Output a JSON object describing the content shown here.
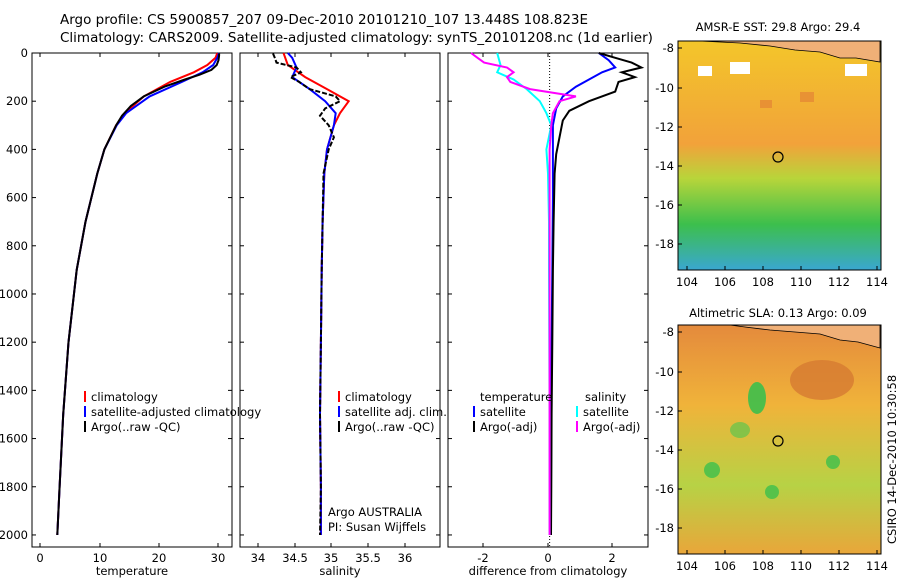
{
  "header": {
    "line1": "Argo profile: CS 5900857_207 09-Dec-2010 20101210_107 13.448S 108.823E",
    "line2": "Climatology: CARS2009. Satellite-adjusted climatology: synTS_20101208.nc (1d earlier)"
  },
  "colors": {
    "climatology": "#ff0000",
    "satellite": "#0000ff",
    "argo": "#000000",
    "sal_satellite": "#00ffff",
    "sal_argo": "#ff00ff"
  },
  "chart_data": [
    {
      "type": "line",
      "id": "temperature",
      "xlabel": "temperature",
      "ylabel": "",
      "xlim": [
        -2,
        32
      ],
      "ylim": [
        2050,
        0
      ],
      "xticks": [
        "0",
        "10",
        "20",
        "30"
      ],
      "yticks": [
        "0",
        "200",
        "400",
        "600",
        "800",
        "1000",
        "1200",
        "1400",
        "1600",
        "1800",
        "2000"
      ],
      "legend": [
        "climatology",
        "satellite-adjusted climatology",
        "Argo(..raw -QC)"
      ],
      "series": [
        {
          "name": "climatology",
          "depth": [
            0,
            20,
            50,
            80,
            120,
            180,
            250,
            300,
            400,
            500,
            700,
            900,
            1200,
            1500,
            1800,
            2000
          ],
          "values": [
            29.5,
            29.2,
            27.8,
            25.5,
            21.5,
            17.0,
            13.8,
            12.3,
            10.3,
            9.1,
            7.1,
            5.6,
            4.2,
            3.3,
            2.7,
            2.3
          ]
        },
        {
          "name": "satellite-adjusted climatology",
          "depth": [
            0,
            20,
            50,
            80,
            120,
            180,
            250,
            300,
            400,
            500,
            700,
            900,
            1200,
            1500,
            1800,
            2000
          ],
          "values": [
            29.8,
            29.5,
            28.8,
            27.0,
            23.5,
            18.0,
            14.0,
            12.4,
            10.3,
            9.1,
            7.1,
            5.6,
            4.2,
            3.3,
            2.7,
            2.3
          ]
        },
        {
          "name": "Argo(..raw -QC)",
          "depth": [
            2,
            10,
            30,
            50,
            70,
            90,
            110,
            140,
            180,
            220,
            260,
            300,
            400,
            500,
            700,
            900,
            1200,
            1500,
            1800,
            2000
          ],
          "values": [
            29.8,
            29.8,
            29.7,
            29.4,
            28.5,
            26.5,
            24.0,
            20.5,
            17.0,
            14.8,
            13.3,
            12.3,
            10.3,
            9.1,
            7.1,
            5.6,
            4.2,
            3.3,
            2.7,
            2.3
          ]
        }
      ]
    },
    {
      "type": "line",
      "id": "salinity",
      "xlabel": "salinity",
      "xlim": [
        33.8,
        36.1
      ],
      "ylim": [
        2050,
        0
      ],
      "xticks": [
        "34",
        "34.5",
        "35",
        "35.5",
        "36"
      ],
      "legend": [
        "climatology",
        "satellite adj. clim.",
        "Argo(..raw -QC)"
      ],
      "annotation": [
        "Argo AUSTRALIA",
        "PI: Susan Wijffels"
      ],
      "series": [
        {
          "name": "climatology",
          "depth": [
            0,
            50,
            100,
            150,
            200,
            250,
            300,
            400,
            500,
            700,
            900,
            1200,
            1500,
            1800,
            2000
          ],
          "values": [
            34.3,
            34.35,
            34.55,
            34.8,
            35.05,
            34.95,
            34.88,
            34.8,
            34.77,
            34.75,
            34.74,
            34.73,
            34.72,
            34.73,
            34.73
          ]
        },
        {
          "name": "satellite adj. clim.",
          "depth": [
            0,
            20,
            60,
            100,
            150,
            200,
            250,
            300,
            400,
            500,
            700,
            900,
            1200,
            1500,
            1800,
            2000
          ],
          "values": [
            34.35,
            34.4,
            34.45,
            34.4,
            34.6,
            34.78,
            34.9,
            34.88,
            34.8,
            34.77,
            34.75,
            34.74,
            34.73,
            34.72,
            34.73,
            34.73
          ]
        },
        {
          "name": "Argo(..raw -QC)",
          "depth": [
            2,
            20,
            40,
            60,
            80,
            100,
            120,
            150,
            180,
            200,
            230,
            260,
            300,
            350,
            400,
            500,
            700,
            900,
            1200,
            1500,
            1800,
            2000
          ],
          "values": [
            34.18,
            34.2,
            34.22,
            34.45,
            34.5,
            34.38,
            34.48,
            34.6,
            34.9,
            34.95,
            34.78,
            34.72,
            34.82,
            34.88,
            34.82,
            34.76,
            34.75,
            34.74,
            34.73,
            34.72,
            34.73,
            34.72
          ]
        }
      ]
    },
    {
      "type": "line",
      "id": "difference",
      "xlabel": "difference from climatology",
      "xlim": [
        -3.1,
        3.0
      ],
      "ylim": [
        2050,
        0
      ],
      "xticks": [
        "-2",
        "0",
        "2"
      ],
      "legend_titles": [
        "temperature",
        "salinity"
      ],
      "legend": [
        "satellite",
        "Argo(-adj)",
        "satellite",
        "Argo(-adj)"
      ],
      "series": [
        {
          "name": "temperature satellite",
          "depth": [
            0,
            30,
            60,
            80,
            110,
            140,
            180,
            230,
            300,
            400,
            600,
            900,
            1200,
            1500,
            1800,
            2000
          ],
          "values": [
            1.5,
            1.8,
            2.0,
            1.6,
            1.2,
            0.8,
            0.4,
            0.2,
            0.1,
            0.1,
            0.1,
            0.08,
            0.06,
            0.05,
            0.04,
            0.04
          ]
        },
        {
          "name": "temperature Argo(-adj)",
          "depth": [
            0,
            20,
            40,
            60,
            80,
            100,
            120,
            160,
            200,
            240,
            280,
            350,
            420,
            500,
            700,
            900,
            1200,
            1500,
            1800,
            2000
          ],
          "values": [
            1.5,
            2.0,
            2.5,
            2.8,
            2.2,
            2.6,
            2.1,
            2.0,
            1.2,
            0.6,
            0.4,
            0.3,
            0.2,
            0.15,
            0.12,
            0.1,
            0.08,
            0.06,
            0.05,
            0.04
          ]
        },
        {
          "name": "salinity satellite",
          "depth": [
            0,
            50,
            80,
            110,
            150,
            200,
            250,
            300,
            400,
            500,
            700,
            900,
            1200,
            1500,
            1800,
            2000
          ],
          "values": [
            -1.6,
            -1.5,
            -1.6,
            -1.1,
            -0.7,
            -0.3,
            -0.1,
            0.05,
            -0.1,
            -0.05,
            -0.02,
            -0.02,
            -0.01,
            0.0,
            0.0,
            0.0
          ]
        },
        {
          "name": "salinity Argo(-adj)",
          "depth": [
            0,
            20,
            40,
            60,
            80,
            100,
            120,
            150,
            180,
            200,
            250,
            300,
            400,
            500,
            700,
            900,
            1200,
            1500,
            1800,
            2000
          ],
          "values": [
            -2.4,
            -2.2,
            -2.0,
            -1.3,
            -1.1,
            -1.3,
            -1.2,
            -0.6,
            0.8,
            0.3,
            0.1,
            0.05,
            0.0,
            0.0,
            0.0,
            0.0,
            0.0,
            0.0,
            0.0,
            0.0
          ]
        }
      ]
    }
  ],
  "maps": [
    {
      "title": "AMSR-E SST: 29.8 Argo: 29.4",
      "yticks": [
        "-8",
        "-10",
        "-12",
        "-14",
        "-16",
        "-18"
      ],
      "xticks": [
        "104",
        "106",
        "108",
        "110",
        "112",
        "114"
      ]
    },
    {
      "title": "Altimetric SLA: 0.13 Argo: 0.09",
      "yticks": [
        "-8",
        "-10",
        "-12",
        "-14",
        "-16",
        "-18"
      ],
      "xticks": [
        "104",
        "106",
        "108",
        "110",
        "112",
        "114"
      ]
    }
  ],
  "stamp": "CSIRO 14-Dec-2010 10:30:58"
}
